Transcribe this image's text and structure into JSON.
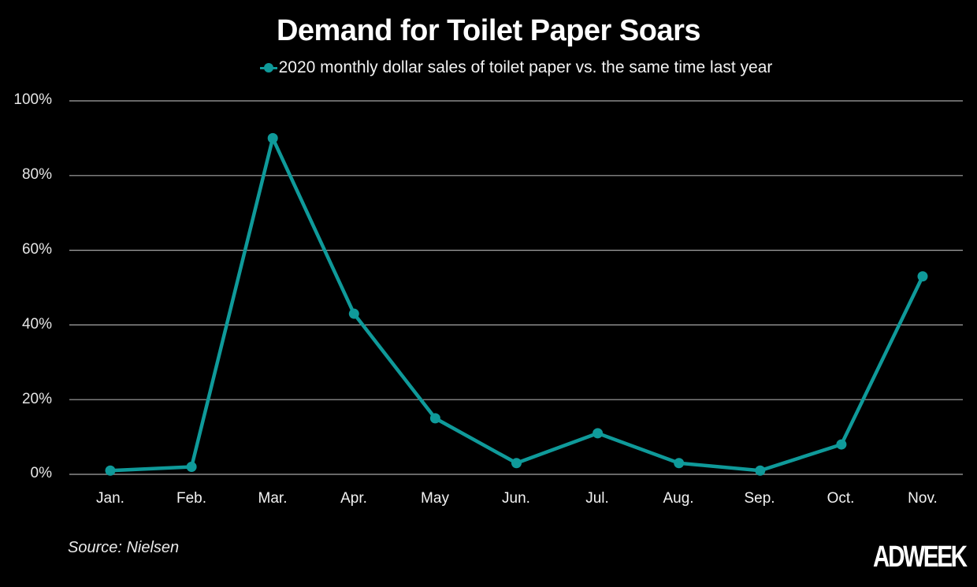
{
  "chart_data": {
    "type": "line",
    "title": "Demand for Toilet Paper Soars",
    "subtitle": "",
    "xlabel": "",
    "ylabel": "",
    "categories": [
      "Jan.",
      "Feb.",
      "Mar.",
      "Apr.",
      "May",
      "Jun.",
      "Jul.",
      "Aug.",
      "Sep.",
      "Oct.",
      "Nov."
    ],
    "series": [
      {
        "name": "2020 monthly dollar sales of toilet paper vs. the same time last year",
        "color": "#0f9a9a",
        "values": [
          1,
          2,
          90,
          43,
          15,
          3,
          11,
          3,
          1,
          8,
          53
        ]
      }
    ],
    "ylim": [
      0,
      100
    ],
    "yticks": [
      "0%",
      "20%",
      "40%",
      "60%",
      "80%",
      "100%"
    ],
    "grid": true,
    "legend_position": "top-center",
    "source": "Source: Nielsen"
  },
  "header": {
    "title": "Demand for Toilet Paper Soars",
    "legend_label": "2020 monthly dollar sales of toilet paper vs. the same time last year"
  },
  "axis": {
    "y_labels": [
      "100%",
      "80%",
      "60%",
      "40%",
      "20%",
      "0%"
    ],
    "x_labels": [
      "Jan.",
      "Feb.",
      "Mar.",
      "Apr.",
      "May",
      "Jun.",
      "Jul.",
      "Aug.",
      "Sep.",
      "Oct.",
      "Nov."
    ]
  },
  "footer": {
    "source": "Source: Nielsen",
    "logo": "ADWEEK"
  },
  "colors": {
    "background": "#000000",
    "line": "#0f9a9a",
    "grid": "#a6a6a6",
    "text": "#ffffff"
  }
}
